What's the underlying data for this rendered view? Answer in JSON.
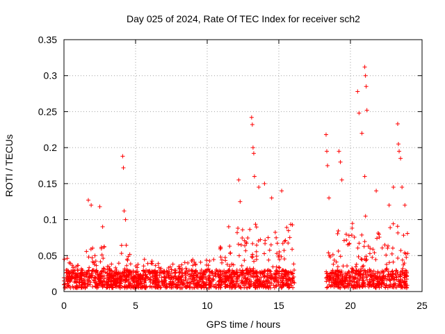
{
  "chart_data": {
    "type": "scatter",
    "title": "Day 025 of 2024, Rate Of TEC Index for receiver sch2",
    "xlabel": "GPS time / hours",
    "ylabel": "ROTI / TECUs",
    "xlim": [
      0,
      25
    ],
    "ylim": [
      0,
      0.35
    ],
    "x_ticks": [
      0,
      5,
      10,
      15,
      20,
      25
    ],
    "x_tick_labels": [
      "0",
      "5",
      "10",
      "15",
      "20",
      "25"
    ],
    "y_ticks": [
      0,
      0.05,
      0.1,
      0.15,
      0.2,
      0.25,
      0.3,
      0.35
    ],
    "y_tick_labels": [
      "0",
      "0.05",
      "0.1",
      "0.15",
      "0.2",
      "0.25",
      "0.3",
      "0.35"
    ],
    "grid": true,
    "marker": "+",
    "color": "#ff0000",
    "data_gap_hours": [
      16.2,
      18.2
    ],
    "segments": [
      {
        "x_start": 0.0,
        "x_end": 16.1,
        "typical_range": [
          0.005,
          0.05
        ]
      },
      {
        "x_start": 18.3,
        "x_end": 24.0,
        "typical_range": [
          0.005,
          0.09
        ]
      }
    ],
    "notable_points": [
      {
        "x": 1.7,
        "y": 0.127
      },
      {
        "x": 1.9,
        "y": 0.12
      },
      {
        "x": 2.5,
        "y": 0.118
      },
      {
        "x": 2.7,
        "y": 0.09
      },
      {
        "x": 4.1,
        "y": 0.188
      },
      {
        "x": 4.15,
        "y": 0.172
      },
      {
        "x": 4.2,
        "y": 0.112
      },
      {
        "x": 4.3,
        "y": 0.1
      },
      {
        "x": 11.5,
        "y": 0.09
      },
      {
        "x": 12.2,
        "y": 0.155
      },
      {
        "x": 12.3,
        "y": 0.125
      },
      {
        "x": 13.1,
        "y": 0.242
      },
      {
        "x": 13.15,
        "y": 0.232
      },
      {
        "x": 13.2,
        "y": 0.2
      },
      {
        "x": 13.25,
        "y": 0.192
      },
      {
        "x": 13.3,
        "y": 0.16
      },
      {
        "x": 13.6,
        "y": 0.145
      },
      {
        "x": 14.0,
        "y": 0.15
      },
      {
        "x": 14.5,
        "y": 0.13
      },
      {
        "x": 15.2,
        "y": 0.14
      },
      {
        "x": 18.3,
        "y": 0.218
      },
      {
        "x": 18.35,
        "y": 0.195
      },
      {
        "x": 18.4,
        "y": 0.175
      },
      {
        "x": 18.5,
        "y": 0.13
      },
      {
        "x": 19.2,
        "y": 0.195
      },
      {
        "x": 19.3,
        "y": 0.18
      },
      {
        "x": 19.4,
        "y": 0.155
      },
      {
        "x": 20.5,
        "y": 0.278
      },
      {
        "x": 20.6,
        "y": 0.248
      },
      {
        "x": 20.8,
        "y": 0.22
      },
      {
        "x": 21.0,
        "y": 0.312
      },
      {
        "x": 21.05,
        "y": 0.3
      },
      {
        "x": 21.1,
        "y": 0.285
      },
      {
        "x": 21.15,
        "y": 0.252
      },
      {
        "x": 21.0,
        "y": 0.16
      },
      {
        "x": 21.8,
        "y": 0.14
      },
      {
        "x": 22.7,
        "y": 0.12
      },
      {
        "x": 23.0,
        "y": 0.145
      },
      {
        "x": 23.3,
        "y": 0.233
      },
      {
        "x": 23.35,
        "y": 0.205
      },
      {
        "x": 23.4,
        "y": 0.195
      },
      {
        "x": 23.5,
        "y": 0.185
      },
      {
        "x": 23.6,
        "y": 0.145
      },
      {
        "x": 23.8,
        "y": 0.12
      }
    ]
  }
}
